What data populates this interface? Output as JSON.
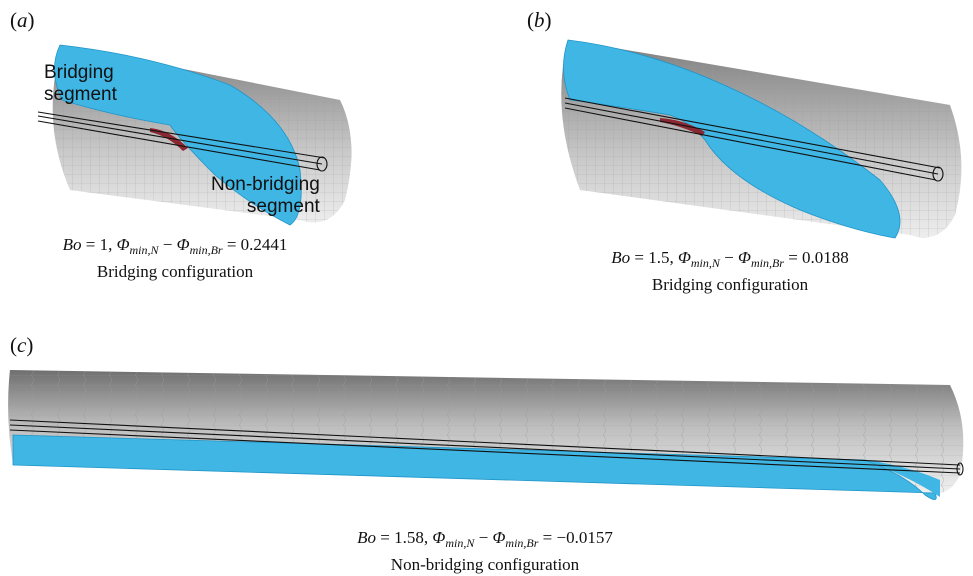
{
  "panels": [
    {
      "label": "a",
      "annotations": {
        "top": [
          "Bridging",
          "segment"
        ],
        "bottom": [
          "Non-bridging",
          "segment"
        ]
      },
      "bo": "1",
      "diff": "0.2441",
      "config": "Bridging configuration"
    },
    {
      "label": "b",
      "bo": "1.5",
      "diff": "0.0188",
      "config": "Bridging configuration"
    },
    {
      "label": "c",
      "bo": "1.58",
      "diff": "−0.0157",
      "config": "Non-bridging configuration"
    }
  ],
  "colors": {
    "liquid": "#3fb6e4",
    "liquid_edge": "#1f95c8",
    "tube": "#a9a9a9",
    "tube_dark": "#7c7c7c",
    "meniscus": "#8b2733",
    "fiber": "#111111"
  }
}
